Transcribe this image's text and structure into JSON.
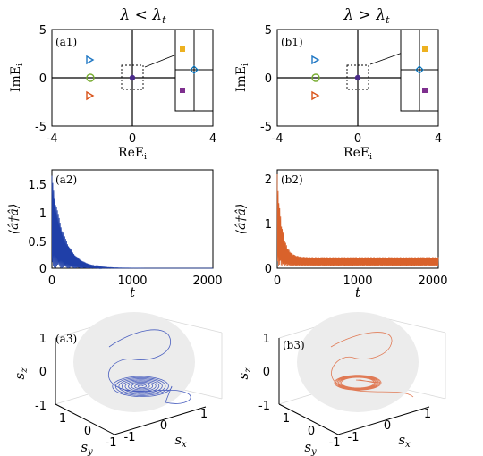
{
  "figure": {
    "col_titles": [
      "λ < λt",
      "λ > λt"
    ],
    "panels": {
      "a1": {
        "label": "(a1)",
        "xlabel": "ReEi",
        "ylabel": "ImEi"
      },
      "b1": {
        "label": "(b1)",
        "xlabel": "ReEi",
        "ylabel": "ImEi"
      },
      "a2": {
        "label": "(a2)",
        "xlabel": "t",
        "ylabel": "⟨â†â⟩"
      },
      "b2": {
        "label": "(b2)",
        "xlabel": "t",
        "ylabel": "⟨â†â⟩"
      },
      "a3": {
        "label": "(a3)",
        "xlabel": "sx",
        "ylabel": "sy",
        "zlabel": "sz"
      },
      "b3": {
        "label": "(b3)",
        "xlabel": "sx",
        "ylabel": "sy",
        "zlabel": "sz"
      }
    }
  },
  "chart_data": [
    {
      "id": "a1",
      "type": "scatter",
      "xlabel": "ReEi",
      "ylabel": "ImEi",
      "xlim": [
        -4,
        4
      ],
      "ylim": [
        -5,
        5
      ],
      "xticks": [
        -4,
        0,
        4
      ],
      "yticks": [
        -5,
        0,
        5
      ],
      "points": [
        {
          "x": -2,
          "y": 1.8,
          "marker": "triangle-right",
          "color": "#1f77c4"
        },
        {
          "x": -2,
          "y": 0,
          "marker": "circle",
          "color": "#77ac30"
        },
        {
          "x": -2,
          "y": -1.8,
          "marker": "triangle-right",
          "color": "#d95319"
        },
        {
          "x": 0,
          "y": 0,
          "marker": "cluster",
          "color": "#4a2a8a"
        }
      ],
      "inset_points": [
        {
          "marker": "square",
          "color": "#edb120"
        },
        {
          "marker": "diamond",
          "color": "#0072bd"
        },
        {
          "marker": "square",
          "color": "#7e2f8e"
        }
      ]
    },
    {
      "id": "b1",
      "type": "scatter",
      "xlabel": "ReEi",
      "ylabel": "ImEi",
      "xlim": [
        -4,
        4
      ],
      "ylim": [
        -5,
        5
      ],
      "xticks": [
        -4,
        0,
        4
      ],
      "yticks": [
        -5,
        0,
        5
      ],
      "points": [
        {
          "x": -2,
          "y": 1.8,
          "marker": "triangle-right",
          "color": "#1f77c4"
        },
        {
          "x": -2,
          "y": 0,
          "marker": "circle",
          "color": "#77ac30"
        },
        {
          "x": -2,
          "y": -1.8,
          "marker": "triangle-right",
          "color": "#d95319"
        },
        {
          "x": 0,
          "y": 0,
          "marker": "cluster",
          "color": "#4a2a8a"
        }
      ],
      "inset_points": [
        {
          "marker": "square",
          "color": "#edb120"
        },
        {
          "marker": "diamond",
          "color": "#0072bd"
        },
        {
          "marker": "square",
          "color": "#7e2f8e"
        }
      ]
    },
    {
      "id": "a2",
      "type": "line",
      "xlabel": "t",
      "ylabel": "⟨â†â⟩",
      "xlim": [
        0,
        2000
      ],
      "ylim": [
        0,
        1.7
      ],
      "xticks": [
        0,
        1000,
        2000
      ],
      "yticks": [
        0,
        0.5,
        1,
        1.5
      ],
      "color": "#1f3fa8",
      "series": [
        {
          "behavior": "damped oscillation",
          "peak": 1.6,
          "steady_state": 0,
          "decay_time": 150
        }
      ]
    },
    {
      "id": "b2",
      "type": "line",
      "xlabel": "t",
      "ylabel": "⟨â†â⟩",
      "xlim": [
        0,
        2000
      ],
      "ylim": [
        0,
        2.2
      ],
      "xticks": [
        0,
        1000,
        2000
      ],
      "yticks": [
        0,
        1,
        2
      ],
      "color": "#d9622b",
      "series": [
        {
          "behavior": "oscillation to limit cycle",
          "peak": 2.1,
          "oscillation_range": [
            0.05,
            0.25
          ]
        }
      ]
    },
    {
      "id": "a3",
      "type": "line3d",
      "xlabel": "sx",
      "ylabel": "sy",
      "zlabel": "sz",
      "xticks": [
        -1,
        0,
        1
      ],
      "yticks": [
        -1,
        0,
        1
      ],
      "zticks": [
        -1,
        0,
        1
      ],
      "color": "#4a5fbf",
      "sphere": true,
      "behavior": "spiral to fixed point"
    },
    {
      "id": "b3",
      "type": "line3d",
      "xlabel": "sx",
      "ylabel": "sy",
      "zlabel": "sz",
      "xticks": [
        -1,
        0,
        1
      ],
      "yticks": [
        -1,
        0,
        1
      ],
      "zticks": [
        -1,
        0,
        1
      ],
      "color": "#e07a55",
      "sphere": true,
      "behavior": "limit cycle"
    }
  ]
}
